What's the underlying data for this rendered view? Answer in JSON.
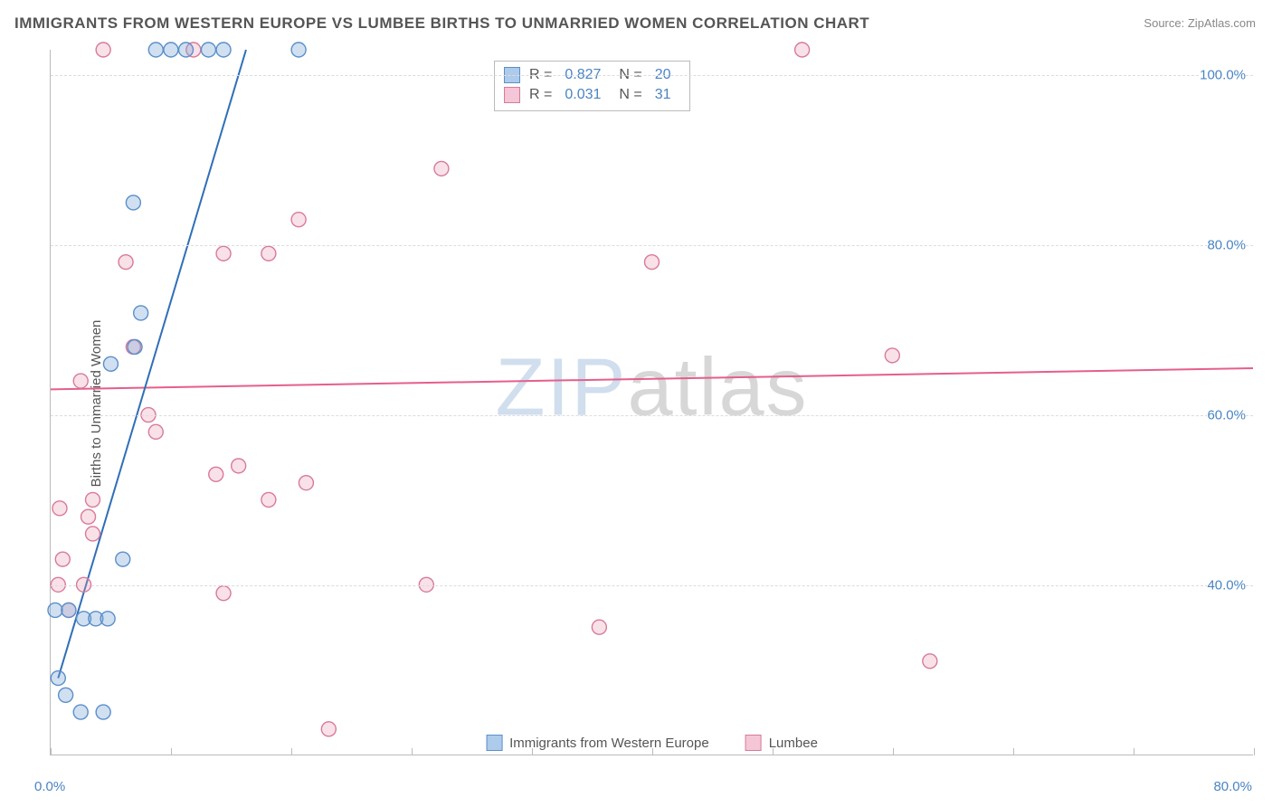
{
  "title": "IMMIGRANTS FROM WESTERN EUROPE VS LUMBEE BIRTHS TO UNMARRIED WOMEN CORRELATION CHART",
  "source_label": "Source:",
  "source_value": "ZipAtlas.com",
  "y_axis_title": "Births to Unmarried Women",
  "watermark_a": "ZIP",
  "watermark_b": "atlas",
  "chart": {
    "type": "scatter",
    "background_color": "#ffffff",
    "grid_color": "#dcdcdc",
    "axis_color": "#bbbbbb",
    "text_color": "#555555",
    "value_color": "#4a84c4",
    "xlim": [
      0,
      80
    ],
    "ylim": [
      20,
      103
    ],
    "x_ticks": [
      0,
      8,
      16,
      24,
      32,
      40,
      48,
      56,
      64,
      72,
      80
    ],
    "y_gridlines": [
      40,
      60,
      80,
      100
    ],
    "y_tick_labels": [
      "40.0%",
      "60.0%",
      "80.0%",
      "100.0%"
    ],
    "x_corner_left": "0.0%",
    "x_corner_right": "80.0%",
    "marker_radius": 8,
    "marker_stroke_width": 1.4,
    "line_width": 2,
    "series": {
      "blue": {
        "name": "Immigrants from Western Europe",
        "fill": "rgba(120,165,215,0.35)",
        "stroke": "#5b8fc9",
        "swatch_fill": "#aecbec",
        "swatch_stroke": "#5b8fc9",
        "line_color": "#2f6fb8",
        "R": "0.827",
        "N": "20",
        "trend": {
          "x1": 0.5,
          "y1": 29,
          "x2": 13,
          "y2": 103
        },
        "points": [
          {
            "x": 0.5,
            "y": 29
          },
          {
            "x": 1.0,
            "y": 27
          },
          {
            "x": 2.0,
            "y": 25
          },
          {
            "x": 3.5,
            "y": 25
          },
          {
            "x": 0.3,
            "y": 37
          },
          {
            "x": 1.2,
            "y": 37
          },
          {
            "x": 2.2,
            "y": 36
          },
          {
            "x": 3.0,
            "y": 36
          },
          {
            "x": 3.8,
            "y": 36
          },
          {
            "x": 4.8,
            "y": 43
          },
          {
            "x": 4.0,
            "y": 66
          },
          {
            "x": 5.6,
            "y": 68
          },
          {
            "x": 6.0,
            "y": 72
          },
          {
            "x": 5.5,
            "y": 85
          },
          {
            "x": 7.0,
            "y": 103
          },
          {
            "x": 8.0,
            "y": 103
          },
          {
            "x": 9.0,
            "y": 103
          },
          {
            "x": 10.5,
            "y": 103
          },
          {
            "x": 11.5,
            "y": 103
          },
          {
            "x": 16.5,
            "y": 103
          }
        ]
      },
      "pink": {
        "name": "Lumbee",
        "fill": "rgba(235,155,180,0.30)",
        "stroke": "#d87a9a",
        "swatch_fill": "#f5c6d6",
        "swatch_stroke": "#d87a9a",
        "line_color": "#e55f8a",
        "R": "0.031",
        "N": "31",
        "trend": {
          "x1": 0,
          "y1": 63,
          "x2": 80,
          "y2": 65.5
        },
        "points": [
          {
            "x": 0.5,
            "y": 40
          },
          {
            "x": 1.2,
            "y": 37
          },
          {
            "x": 0.8,
            "y": 43
          },
          {
            "x": 2.2,
            "y": 40
          },
          {
            "x": 0.6,
            "y": 49
          },
          {
            "x": 2.8,
            "y": 46
          },
          {
            "x": 2.5,
            "y": 48
          },
          {
            "x": 2.8,
            "y": 50
          },
          {
            "x": 11.5,
            "y": 39
          },
          {
            "x": 11.0,
            "y": 53
          },
          {
            "x": 12.5,
            "y": 54
          },
          {
            "x": 14.5,
            "y": 50
          },
          {
            "x": 17.0,
            "y": 52
          },
          {
            "x": 7.0,
            "y": 58
          },
          {
            "x": 6.5,
            "y": 60
          },
          {
            "x": 2.0,
            "y": 64
          },
          {
            "x": 5.5,
            "y": 68
          },
          {
            "x": 5.0,
            "y": 78
          },
          {
            "x": 11.5,
            "y": 79
          },
          {
            "x": 14.5,
            "y": 79
          },
          {
            "x": 16.5,
            "y": 83
          },
          {
            "x": 26.0,
            "y": 89
          },
          {
            "x": 18.5,
            "y": 23
          },
          {
            "x": 25.0,
            "y": 40
          },
          {
            "x": 36.5,
            "y": 35
          },
          {
            "x": 40.0,
            "y": 78
          },
          {
            "x": 50.0,
            "y": 103
          },
          {
            "x": 56.0,
            "y": 67
          },
          {
            "x": 58.5,
            "y": 31
          },
          {
            "x": 3.5,
            "y": 103
          },
          {
            "x": 9.5,
            "y": 103
          }
        ]
      }
    },
    "legend_labels": {
      "R": "R =",
      "N": "N ="
    }
  }
}
